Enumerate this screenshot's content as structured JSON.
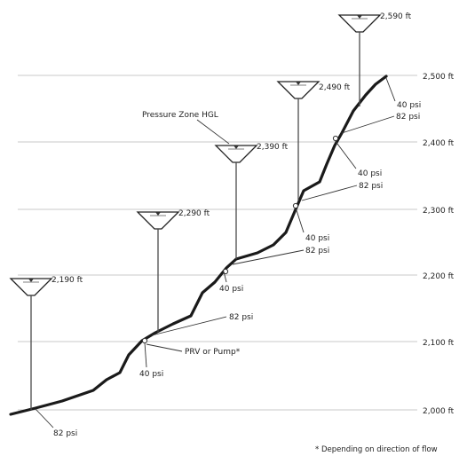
{
  "elevation_labels": [
    "2,500 ft",
    "2,400 ft",
    "2,300 ft",
    "2,200 ft",
    "2,100 ft",
    "2,000 ft"
  ],
  "tanks": [
    {
      "elevation": "2,190 ft"
    },
    {
      "elevation": "2,290 ft"
    },
    {
      "elevation": "2,390 ft"
    },
    {
      "elevation": "2,490 ft"
    },
    {
      "elevation": "2,590 ft"
    }
  ],
  "psi_labels": {
    "p82_a": "82 psi",
    "p40_a": "40 psi",
    "p82_b": "82 psi",
    "p40_b": "40 psi",
    "p82_c": "82 psi",
    "p40_c": "40 psi",
    "p82_d": "82 psi",
    "p40_d": "40 psi",
    "p82_e": "82 psi",
    "p40_e": "40 psi"
  },
  "annotations": {
    "hgl": "Pressure Zone HGL",
    "valve": "PRV or Pump*",
    "footnote": "* Depending on direction of flow"
  },
  "colors": {
    "gridline": "#c8c8c8",
    "ground": "#1a1a1a",
    "stem": "#4a4a4a"
  }
}
